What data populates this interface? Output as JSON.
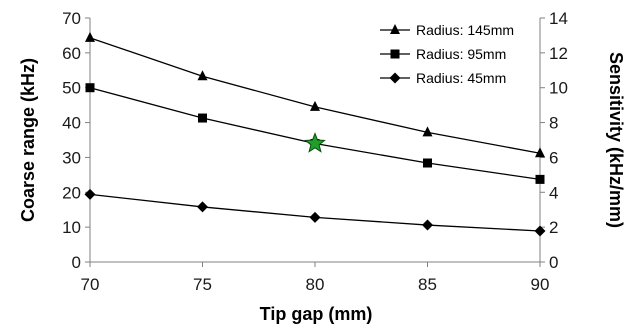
{
  "chart_data": {
    "type": "line",
    "xlabel": "Tip gap (mm)",
    "ylabel": "Coarse range (kHz)",
    "y2label": "Sensitivity (kHz/mm)",
    "x": [
      70,
      75,
      80,
      85,
      90
    ],
    "xlim": [
      70,
      90
    ],
    "ylim": [
      0,
      70
    ],
    "y2lim": [
      0,
      14
    ],
    "xticks": [
      "70",
      "75",
      "80",
      "85",
      "90"
    ],
    "yticks": [
      "0",
      "10",
      "20",
      "30",
      "40",
      "50",
      "60",
      "70"
    ],
    "y2ticks": [
      "0",
      "2",
      "4",
      "6",
      "8",
      "10",
      "12",
      "14"
    ],
    "grid": false,
    "legend_position": "top-right",
    "series": [
      {
        "name": "Radius: 145mm",
        "marker": "triangle",
        "values": [
          64.3,
          53.3,
          44.5,
          37.2,
          31.2
        ]
      },
      {
        "name": "Radius: 95mm",
        "marker": "square",
        "values": [
          50.0,
          41.3,
          34.0,
          28.4,
          23.7
        ]
      },
      {
        "name": "Radius: 45mm",
        "marker": "diamond",
        "values": [
          19.4,
          15.8,
          12.8,
          10.6,
          8.9
        ]
      }
    ],
    "highlight": {
      "x": 80,
      "y": 34.0,
      "marker": "star",
      "color": "#1f9e2a"
    },
    "colors": {
      "line": "#000000",
      "highlight": "#1f9e2a"
    }
  }
}
